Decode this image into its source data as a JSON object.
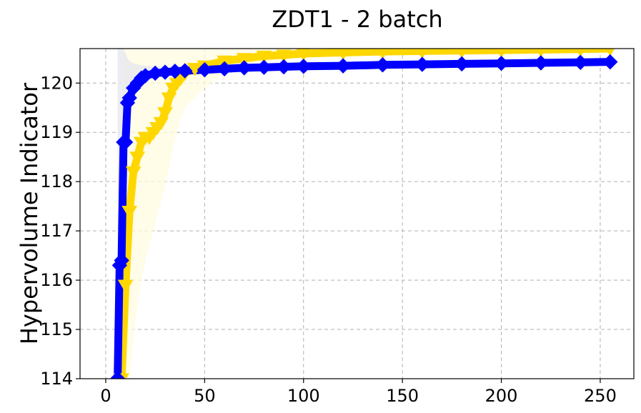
{
  "chart_data": {
    "type": "line",
    "title": "ZDT1 - 2 batch",
    "xlabel": "",
    "ylabel": "Hypervolume Indicator",
    "xlim": [
      -13,
      267
    ],
    "ylim": [
      114,
      120.7
    ],
    "xticks": [
      0,
      50,
      100,
      150,
      200,
      250
    ],
    "yticks": [
      114,
      115,
      116,
      117,
      118,
      119,
      120
    ],
    "grid": true,
    "series": [
      {
        "color": "#ffd700",
        "band_color": "#fffbe0",
        "marker": "triangle-down",
        "x": [
          8,
          10,
          12,
          14,
          16,
          18,
          20,
          22,
          24,
          26,
          28,
          30,
          32,
          34,
          36,
          38,
          40,
          45,
          50,
          60,
          70,
          80,
          90,
          100,
          120,
          140,
          160,
          180,
          200,
          220,
          240,
          255
        ],
        "y": [
          114.0,
          115.9,
          117.4,
          118.2,
          118.5,
          118.8,
          118.9,
          118.9,
          119.0,
          119.1,
          119.2,
          119.4,
          119.7,
          119.9,
          120.0,
          120.1,
          120.2,
          120.3,
          120.35,
          120.45,
          120.5,
          120.55,
          120.57,
          120.6,
          120.62,
          120.64,
          120.65,
          120.66,
          120.67,
          120.68,
          120.69,
          120.7
        ],
        "lower": [
          114.0,
          114.0,
          114.0,
          114.8,
          115.5,
          116.0,
          116.4,
          116.7,
          117.0,
          117.3,
          117.6,
          117.9,
          118.3,
          118.7,
          119.0,
          119.3,
          119.5,
          119.7,
          119.9,
          120.2,
          120.35,
          120.45,
          120.5,
          120.55,
          120.58,
          120.6,
          120.61,
          120.62,
          120.63,
          120.64,
          120.65,
          120.66
        ],
        "upper": [
          120.7,
          120.7,
          120.7,
          120.7,
          120.7,
          120.7,
          120.7,
          120.7,
          120.7,
          120.7,
          120.7,
          120.7,
          120.7,
          120.7,
          120.7,
          120.7,
          120.7,
          120.7,
          120.7,
          120.7,
          120.7,
          120.7,
          120.7,
          120.7,
          120.7,
          120.7,
          120.7,
          120.7,
          120.7,
          120.7,
          120.7,
          120.7
        ]
      },
      {
        "color": "#0000ff",
        "band_color": "#e6e6f0",
        "marker": "diamond",
        "x": [
          6,
          7,
          8,
          9,
          10,
          11,
          12,
          14,
          16,
          18,
          20,
          25,
          30,
          35,
          40,
          50,
          60,
          70,
          80,
          90,
          100,
          120,
          140,
          160,
          180,
          200,
          220,
          240,
          255
        ],
        "y": [
          114.0,
          116.3,
          116.4,
          118.8,
          118.8,
          119.6,
          119.7,
          119.9,
          120.0,
          120.1,
          120.15,
          120.2,
          120.22,
          120.24,
          120.25,
          120.27,
          120.29,
          120.31,
          120.32,
          120.33,
          120.34,
          120.35,
          120.37,
          120.38,
          120.39,
          120.4,
          120.41,
          120.42,
          120.43
        ],
        "lower": [
          114.0,
          114.0,
          114.0,
          118.0,
          118.5,
          119.3,
          119.5,
          119.7,
          119.85,
          119.95,
          120.05,
          120.1,
          120.15,
          120.18,
          120.2,
          120.22,
          120.24,
          120.26,
          120.27,
          120.28,
          120.29,
          120.31,
          120.33,
          120.34,
          120.35,
          120.36,
          120.37,
          120.38,
          120.39
        ],
        "upper": [
          120.7,
          120.7,
          120.7,
          120.7,
          120.6,
          120.5,
          120.45,
          120.4,
          120.38,
          120.36,
          120.35,
          120.34,
          120.34,
          120.34,
          120.34,
          120.35,
          120.36,
          120.37,
          120.38,
          120.39,
          120.4,
          120.41,
          120.42,
          120.43,
          120.44,
          120.45,
          120.46,
          120.47,
          120.48
        ]
      }
    ]
  }
}
